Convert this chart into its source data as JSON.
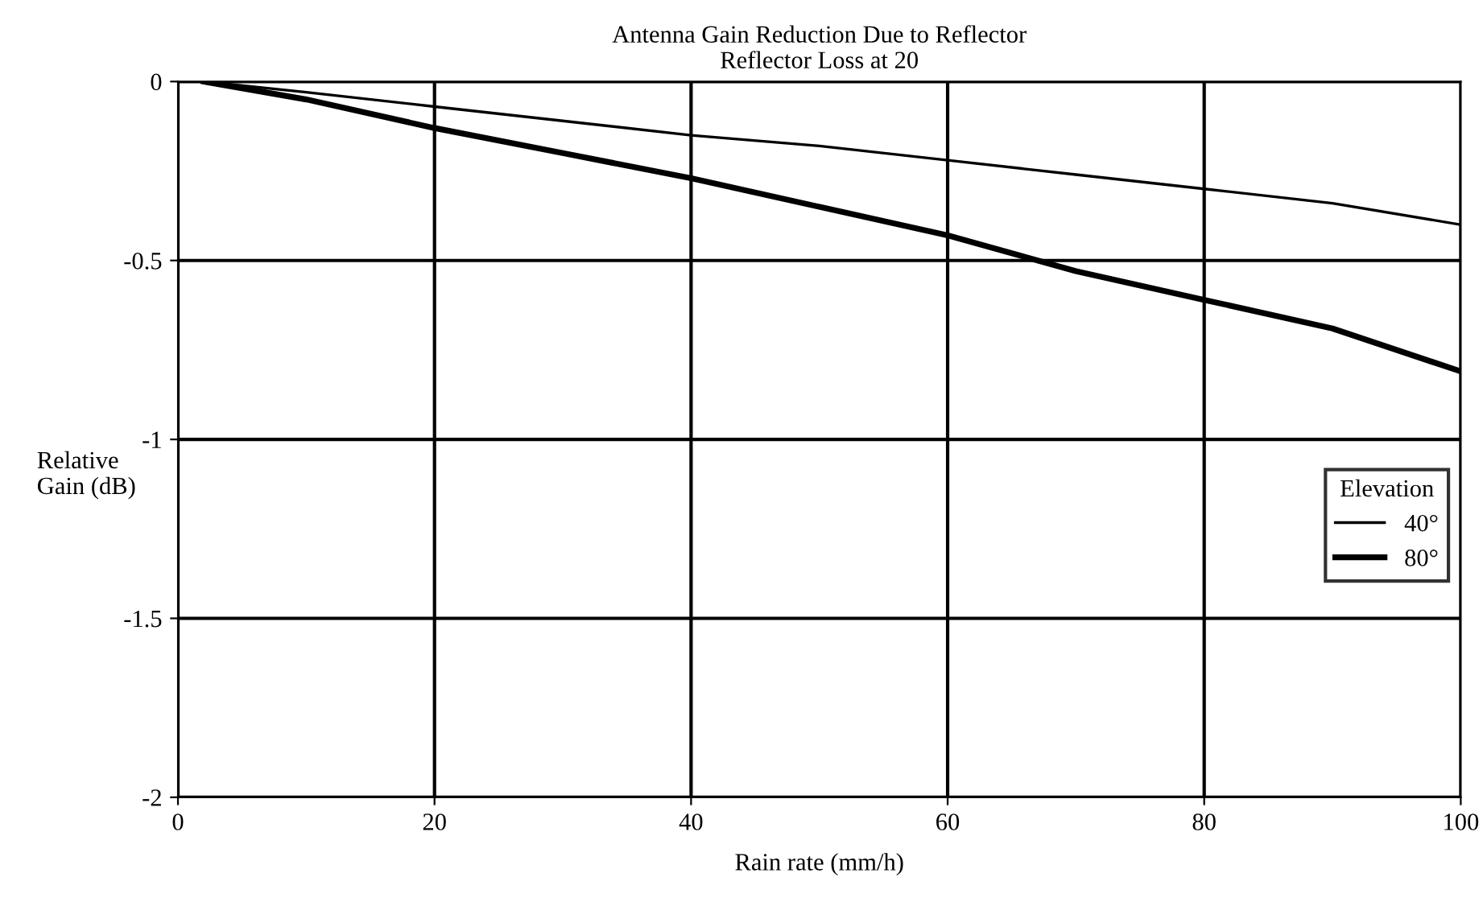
{
  "chart_data": {
    "type": "line",
    "title": "Antenna Gain Reduction Due to Reflector\nReflector Loss at 20",
    "xlabel": "Rain rate (mm/h)",
    "ylabel": "Relative\nGain (dB)",
    "legend_title": "Elevation",
    "legend": "right",
    "grid": true,
    "xlim": [
      0,
      100
    ],
    "ylim": [
      -2,
      0
    ],
    "xticks": [
      0,
      20,
      40,
      60,
      80,
      100
    ],
    "yticks": [
      0,
      -0.5,
      -1,
      -1.5,
      -2
    ],
    "series": [
      {
        "name": "40°",
        "color": "#000000",
        "x": [
          2,
          10,
          20,
          30,
          40,
          50,
          60,
          70,
          80,
          90,
          100
        ],
        "values": [
          0,
          -0.03,
          -0.07,
          -0.11,
          -0.15,
          -0.18,
          -0.22,
          -0.26,
          -0.3,
          -0.34,
          -0.4
        ]
      },
      {
        "name": "80°",
        "color": "#000000",
        "x": [
          2,
          10,
          20,
          30,
          40,
          50,
          60,
          70,
          80,
          90,
          100
        ],
        "values": [
          0,
          -0.05,
          -0.13,
          -0.2,
          -0.27,
          -0.35,
          -0.43,
          -0.53,
          -0.61,
          -0.69,
          -0.81
        ]
      }
    ]
  }
}
